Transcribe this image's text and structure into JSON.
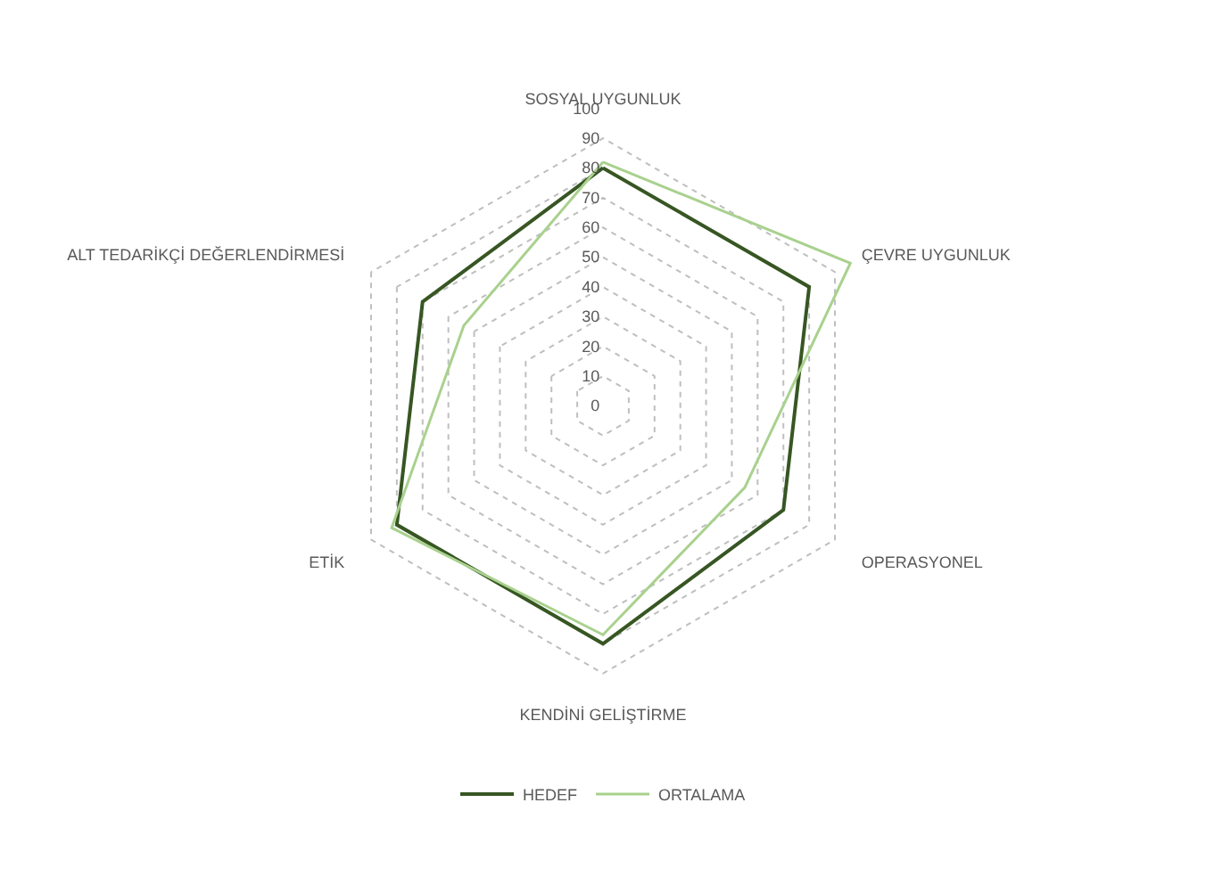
{
  "chart_data": {
    "type": "radar",
    "categories": [
      "SOSYAL UYGUNLUK",
      "ÇEVRE UYGUNLUK",
      "OPERASYONEL",
      "KENDİNİ GELİŞTİRME",
      "ETİK",
      "ALT TEDARİKÇİ DEĞERLENDİRMESİ"
    ],
    "series": [
      {
        "name": "HEDEF",
        "color": "#375623",
        "values": [
          80,
          80,
          70,
          80,
          80,
          70
        ]
      },
      {
        "name": "ORTALAMA",
        "color": "#a9d18e",
        "values": [
          82,
          96,
          55,
          77,
          82,
          54
        ]
      }
    ],
    "ylim": [
      0,
      100
    ],
    "yticks": [
      0,
      10,
      20,
      30,
      40,
      50,
      60,
      70,
      80,
      90,
      100
    ],
    "grid": true,
    "legend": "bottom",
    "marker": "none",
    "line_style": "solid"
  }
}
